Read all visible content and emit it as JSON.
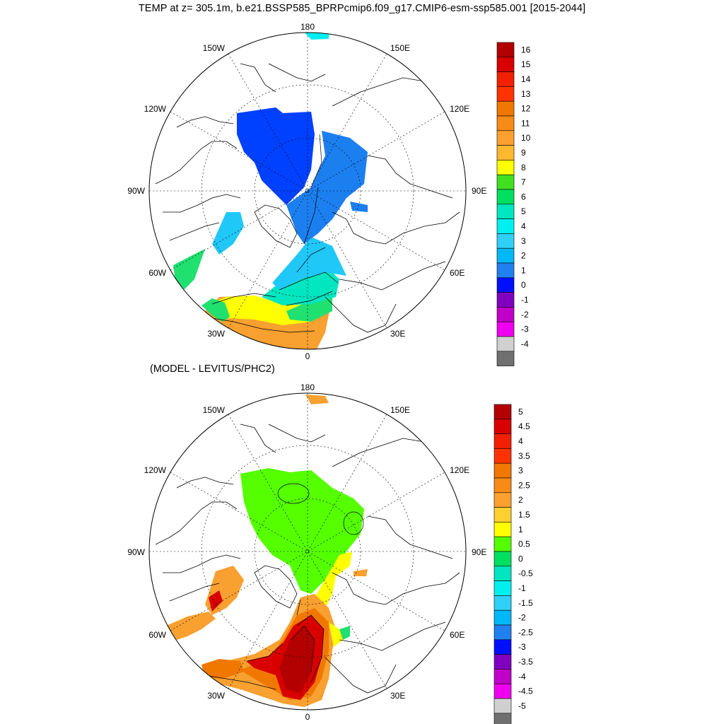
{
  "title": "TEMP at z= 305.1m, b.e21.BSSP585_BPRPcmip6.f09_g17.CMIP6-esm-ssp585.001 [2015-2044]",
  "subtitle": "(MODEL - LEVITUS/PHC2)",
  "lon_labels": {
    "n180": "180",
    "w150": "150W",
    "e150": "150E",
    "w120": "120W",
    "e120": "120E",
    "w90": "90W",
    "e90": "90E",
    "w60": "60W",
    "e60": "60E",
    "w30": "30W",
    "e30": "30E",
    "z0": "0"
  },
  "map_top": {
    "colorbar": {
      "labels": [
        "16",
        "15",
        "14",
        "13",
        "12",
        "11",
        "10",
        "9",
        "8",
        "7",
        "6",
        "5",
        "4",
        "3",
        "2",
        "1",
        "0",
        "-1",
        "-2",
        "-3",
        "-4"
      ],
      "colors": [
        "#b30000",
        "#d90000",
        "#f02000",
        "#ff3300",
        "#f07800",
        "#f88a18",
        "#fca030",
        "#ffb830",
        "#ffff00",
        "#40e020",
        "#00e060",
        "#00e6c0",
        "#00f0f0",
        "#30d0f8",
        "#00b8f8",
        "#2080f0",
        "#0010ff",
        "#8000c0",
        "#c000c8",
        "#f000f0",
        "#d0d0d0",
        "#707070"
      ]
    }
  },
  "map_bottom": {
    "colorbar": {
      "labels": [
        "5",
        "4.5",
        "4",
        "3.5",
        "3",
        "2.5",
        "2",
        "1.5",
        "1",
        "0.5",
        "0",
        "-0.5",
        "-1",
        "-1.5",
        "-2",
        "-2.5",
        "-3",
        "-3.5",
        "-4",
        "-4.5",
        "-5"
      ],
      "colors": [
        "#b30000",
        "#d90000",
        "#f02000",
        "#ff3300",
        "#f07800",
        "#f88a18",
        "#fca030",
        "#ffd030",
        "#ffff00",
        "#55ff00",
        "#00e060",
        "#00e6c0",
        "#00f0f0",
        "#30d0f8",
        "#00b8f8",
        "#2080f0",
        "#0010ff",
        "#8000c0",
        "#c000c8",
        "#f000f0",
        "#d0d0d0",
        "#707070"
      ]
    }
  },
  "colors": {
    "deep_blue": "#0040ff",
    "mid_blue": "#1c7ff0",
    "light_blue": "#20c8f8",
    "cyan": "#00f0f0",
    "green": "#20e070",
    "yellow": "#ffff00",
    "gold": "#ffd030",
    "orange": "#f8a030",
    "dark_orange": "#f07800",
    "red": "#d90000",
    "lime": "#55ff00"
  }
}
